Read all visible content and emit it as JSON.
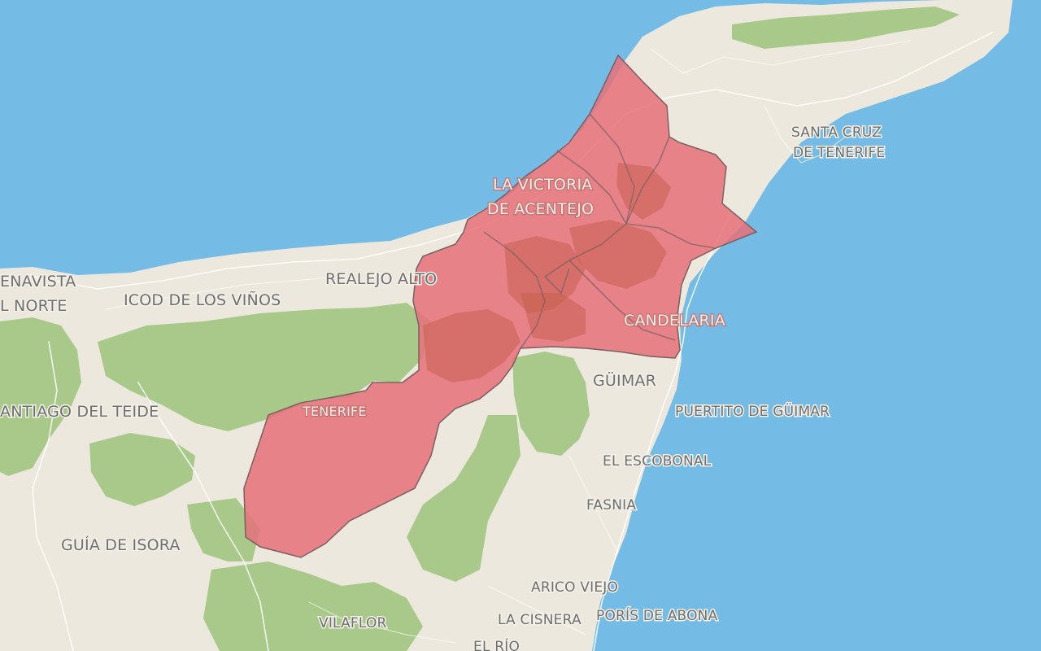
{
  "map": {
    "colors": {
      "sea": "#74bbe5",
      "land": "#ece8dd",
      "vegetation": "#a8c98a",
      "highlight_fill": "#e8707a",
      "highlight_dark": "#c7614e"
    },
    "labels": {
      "buenavista": "ENAVISTA",
      "del_norte": "L NORTE",
      "icod": "ICOD DE LOS VIÑOS",
      "realejo": "REALEJO ALTO",
      "victoria_1": "LA VICTORIA",
      "victoria_2": "DE ACENTEJO",
      "santa_cruz_1": "SANTA CRUZ",
      "santa_cruz_2": "DE TENERIFE",
      "candelaria": "CANDELARIA",
      "guimar": "GÜIMAR",
      "puertito": "PUERTITO DE GÜIMAR",
      "santiago": "ANTIAGO DEL TEIDE",
      "tenerife": "TENERIFE",
      "escobonal": "EL ESCOBONAL",
      "fasnia": "FASNIA",
      "guia": "GUÍA DE ISORA",
      "arico": "ARICO VIEJO",
      "cisnera": "LA CISNERA",
      "poris": "PORÍS DE ABONA",
      "vilaflor": "VILAFLOR",
      "el_rio": "EL RÍO"
    }
  }
}
